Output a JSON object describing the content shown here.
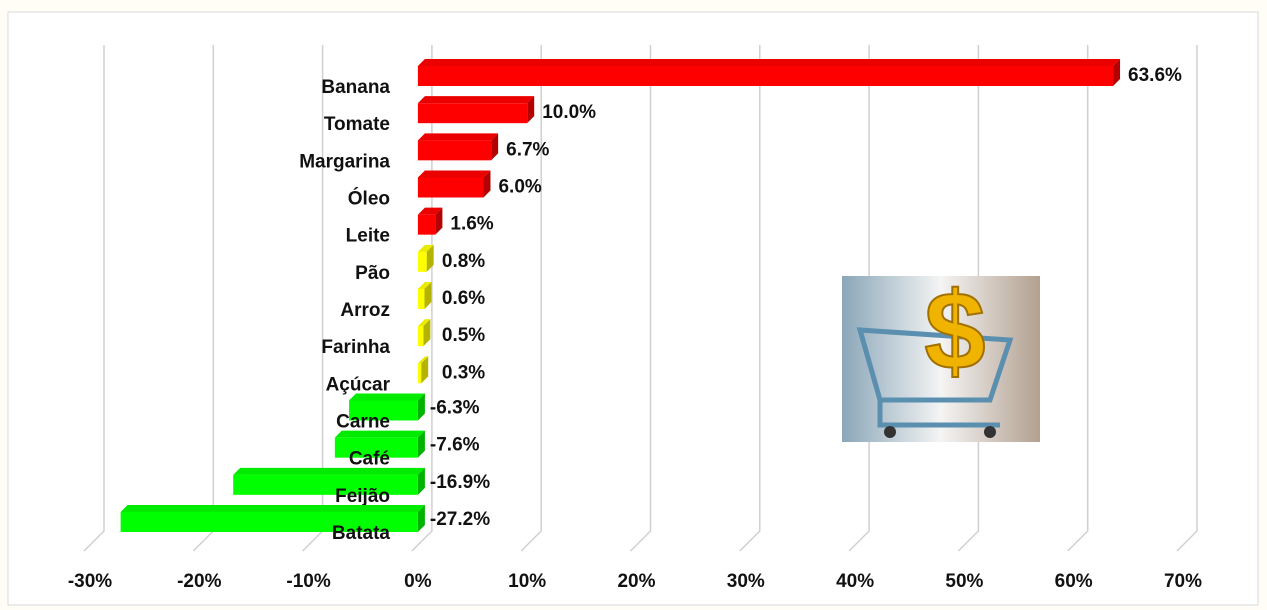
{
  "chart_data": {
    "type": "bar",
    "orientation": "horizontal",
    "categories": [
      "Banana",
      "Tomate",
      "Margarina",
      "Óleo",
      "Leite",
      "Pão",
      "Arroz",
      "Farinha",
      "Açúcar",
      "Carne",
      "Café",
      "Feijão",
      "Batata"
    ],
    "values": [
      63.6,
      10.0,
      6.7,
      6.0,
      1.6,
      0.8,
      0.6,
      0.5,
      0.3,
      -6.3,
      -7.6,
      -16.9,
      -27.2
    ],
    "value_labels": [
      "63.6%",
      "10.0%",
      "6.7%",
      "6.0%",
      "1.6%",
      "0.8%",
      "0.6%",
      "0.5%",
      "0.3%",
      "-6.3%",
      "-7.6%",
      "-16.9%",
      "-27.2%"
    ],
    "colors": [
      "#ff0000",
      "#ff0000",
      "#ff0000",
      "#ff0000",
      "#ff0000",
      "#ffff00",
      "#ffff00",
      "#ffff00",
      "#ffff00",
      "#00ff00",
      "#00ff00",
      "#00ff00",
      "#00ff00"
    ],
    "xlim": [
      -30,
      70
    ],
    "xticks": [
      {
        "value": -30,
        "label": "-30%"
      },
      {
        "value": -20,
        "label": "-20%"
      },
      {
        "value": -10,
        "label": "-10%"
      },
      {
        "value": 0,
        "label": "0%"
      },
      {
        "value": 10,
        "label": "10%"
      },
      {
        "value": 20,
        "label": "20%"
      },
      {
        "value": 30,
        "label": "30%"
      },
      {
        "value": 40,
        "label": "40%"
      },
      {
        "value": 50,
        "label": "50%"
      },
      {
        "value": 60,
        "label": "60%"
      },
      {
        "value": 70,
        "label": "70%"
      }
    ],
    "grid": true
  }
}
